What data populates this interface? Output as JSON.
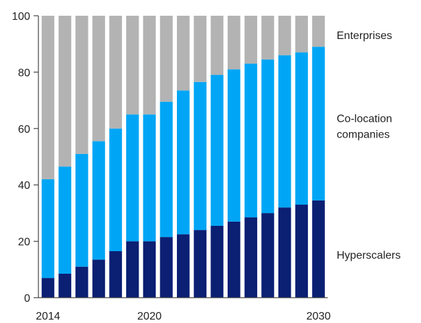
{
  "chart_data": {
    "type": "bar",
    "stacked": true,
    "title": "",
    "xlabel": "",
    "ylabel": "",
    "ylim": [
      0,
      100
    ],
    "yticks": [
      0,
      20,
      40,
      60,
      80,
      100
    ],
    "x": [
      2014,
      2015,
      2016,
      2017,
      2018,
      2019,
      2020,
      2021,
      2022,
      2023,
      2024,
      2025,
      2026,
      2027,
      2028,
      2029,
      2030
    ],
    "xtick_labels": [
      {
        "x": 2014,
        "label": "2014"
      },
      {
        "x": 2020,
        "label": "2020"
      },
      {
        "x": 2030,
        "label": "2030"
      }
    ],
    "series": [
      {
        "name": "Hyperscalers",
        "color": "#0b1f73",
        "values": [
          7,
          8.5,
          11,
          13.5,
          16.5,
          20,
          20,
          21.5,
          22.5,
          24,
          25.5,
          27,
          28.5,
          30,
          32,
          33,
          34.5
        ]
      },
      {
        "name": "Co-location companies",
        "color": "#00a6f5",
        "values": [
          35,
          38,
          40,
          42,
          43.5,
          45,
          45,
          48,
          51,
          52.5,
          53.5,
          54,
          54.5,
          54.5,
          54,
          54,
          54.5
        ]
      },
      {
        "name": "Enterprises",
        "color": "#b3b3b3",
        "values": [
          58,
          53.5,
          49,
          44.5,
          40,
          35,
          35,
          30.5,
          26.5,
          23.5,
          21,
          19,
          17,
          15.5,
          14,
          13,
          11
        ]
      }
    ],
    "legend": {
      "placement": "right",
      "labels": [
        {
          "series": "Enterprises",
          "lines": [
            "Enterprises"
          ]
        },
        {
          "series": "Co-location companies",
          "lines": [
            "Co-location",
            "companies"
          ]
        },
        {
          "series": "Hyperscalers",
          "lines": [
            "Hyperscalers"
          ]
        }
      ]
    }
  }
}
